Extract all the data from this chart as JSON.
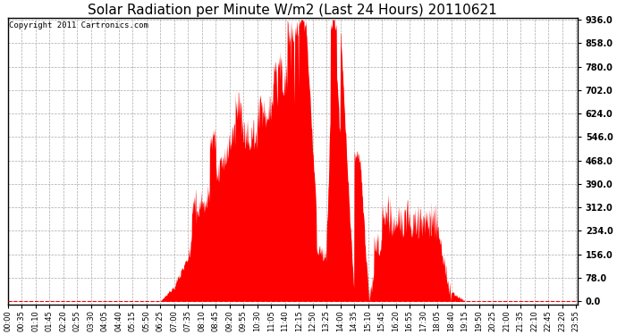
{
  "title": "Solar Radiation per Minute W/m2 (Last 24 Hours) 20110621",
  "copyright_text": "Copyright 2011 Cartronics.com",
  "yticks": [
    0.0,
    78.0,
    156.0,
    234.0,
    312.0,
    390.0,
    468.0,
    546.0,
    624.0,
    702.0,
    780.0,
    858.0,
    936.0
  ],
  "ymin": 0.0,
  "ymax": 936.0,
  "fill_color": "#ff0000",
  "line_color": "#ff0000",
  "dashed_line_color": "#ff0000",
  "grid_color": "#aaaaaa",
  "background_color": "#ffffff",
  "border_color": "#000000",
  "title_fontsize": 11,
  "copyright_fontsize": 6.5,
  "tick_fontsize": 6,
  "ytick_fontsize": 7,
  "xtick_labels": [
    "00:00",
    "00:35",
    "01:10",
    "01:45",
    "02:20",
    "02:55",
    "03:30",
    "04:05",
    "04:40",
    "05:15",
    "05:50",
    "06:25",
    "07:00",
    "07:35",
    "08:10",
    "08:45",
    "09:20",
    "09:55",
    "10:30",
    "11:05",
    "11:40",
    "12:15",
    "12:50",
    "13:25",
    "14:00",
    "14:35",
    "15:10",
    "15:45",
    "16:20",
    "16:55",
    "17:30",
    "18:05",
    "18:40",
    "19:15",
    "19:50",
    "20:25",
    "21:00",
    "21:35",
    "22:10",
    "22:45",
    "23:20",
    "23:55"
  ]
}
